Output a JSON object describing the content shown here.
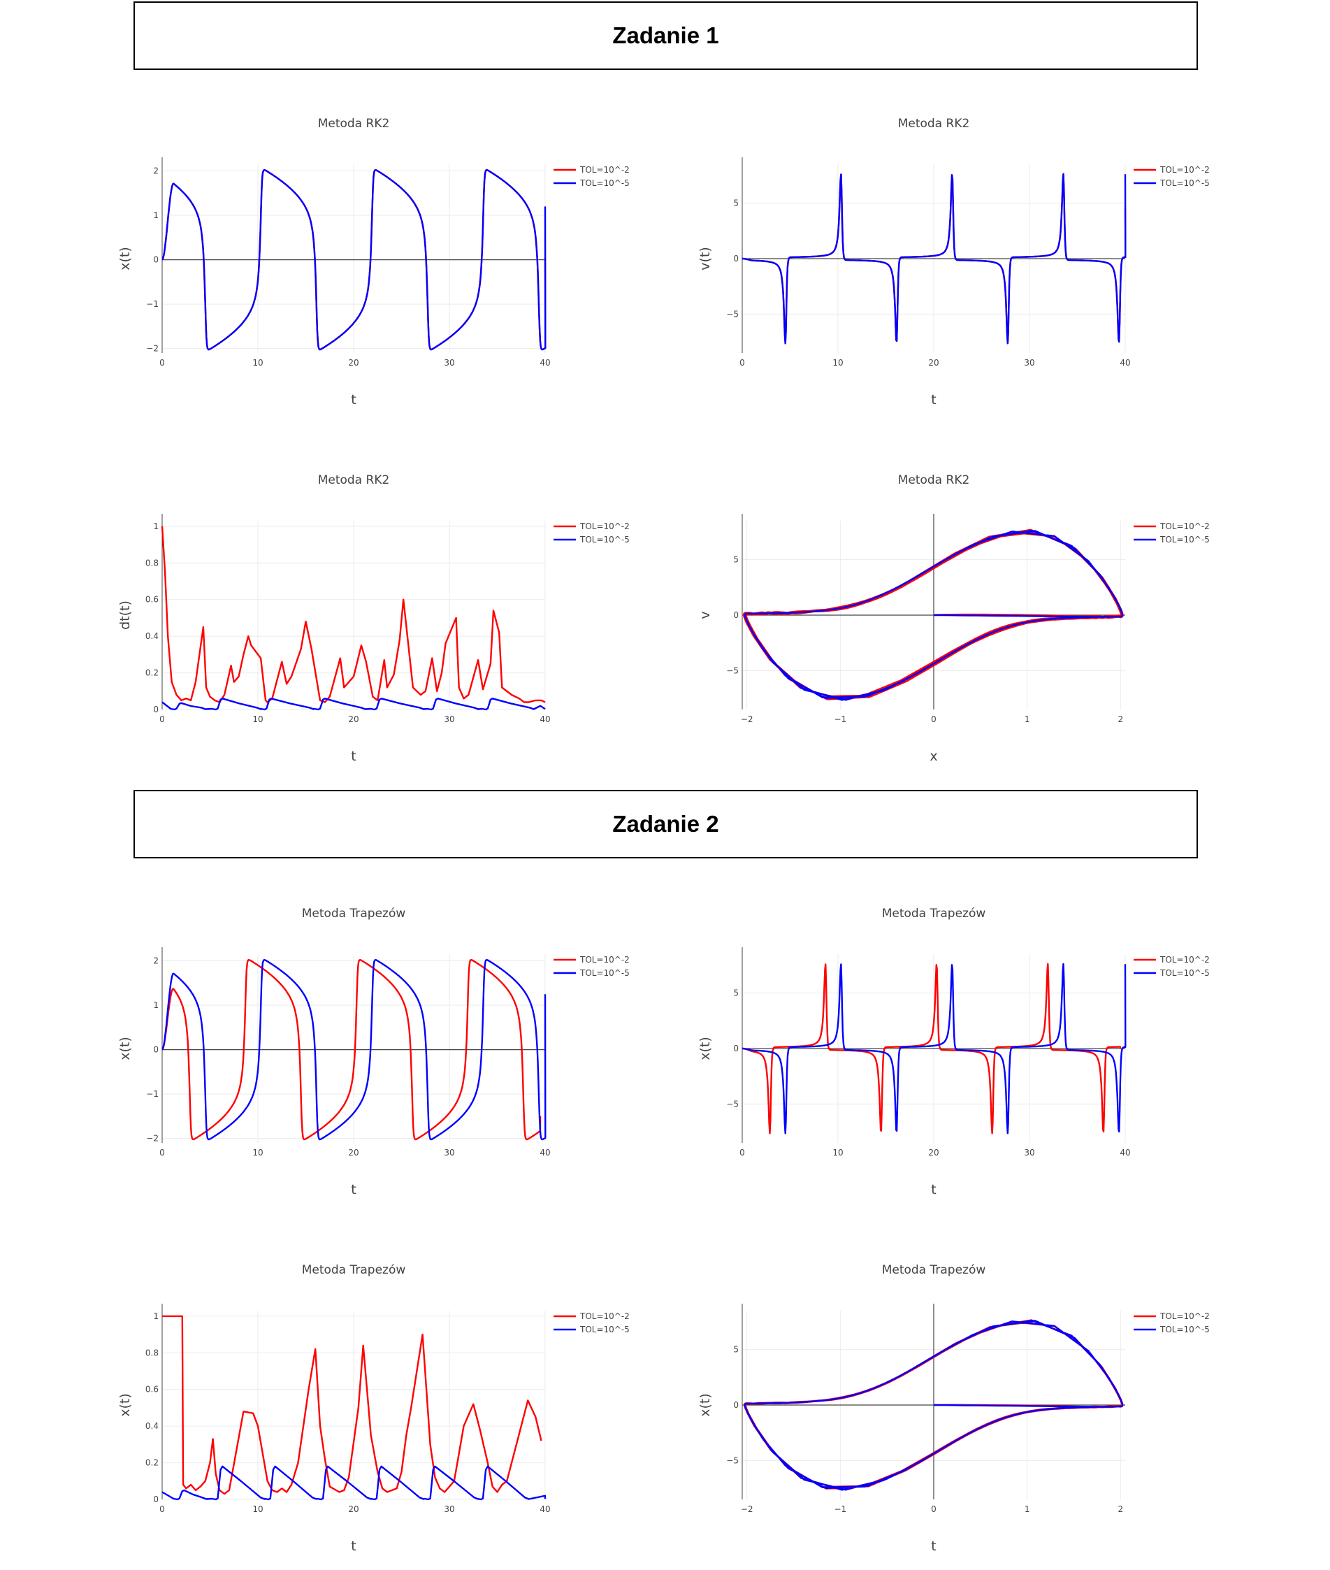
{
  "sections": [
    {
      "title": "Zadanie 1"
    },
    {
      "title": "Zadanie 2"
    }
  ],
  "colors": {
    "series_a": "#ff0000",
    "series_b": "#0000ff",
    "grid": "#ebebeb",
    "zero": "#444444"
  },
  "chart_data": [
    {
      "type": "line",
      "title": "Metoda RK2",
      "xlabel": "t",
      "ylabel": "x(t)",
      "xlim": [
        0,
        40
      ],
      "ylim": [
        -2.1,
        2.15
      ],
      "xticks": [
        0,
        10,
        20,
        30,
        40
      ],
      "yticks": [
        -2,
        -1,
        0,
        1,
        2
      ],
      "grid": true,
      "legend": "top-right",
      "series": [
        {
          "name": "TOL=10^-2",
          "color": "#ff0000",
          "kind": "vdp_x",
          "t0": 0,
          "t1": 40,
          "start": 0.75,
          "end_val": 0.05,
          "dt": 0.06
        },
        {
          "name": "TOL=10^-5",
          "color": "#0000ff",
          "kind": "vdp_x",
          "t0": 0,
          "t1": 40,
          "start": 0.75,
          "end_val": 1.2,
          "dt": 0.06
        }
      ]
    },
    {
      "type": "line",
      "title": "Metoda RK2",
      "xlabel": "t",
      "ylabel": "v(t)",
      "xlim": [
        0,
        40
      ],
      "ylim": [
        -8.5,
        8.5
      ],
      "xticks": [
        0,
        10,
        20,
        30,
        40
      ],
      "yticks": [
        -5,
        0,
        5
      ],
      "grid": true,
      "legend": "top-right",
      "series": [
        {
          "name": "TOL=10^-2",
          "color": "#ff0000",
          "kind": "vdp_v",
          "t0": 0,
          "t1": 40,
          "start": 0.75,
          "end_val": 4.5,
          "dt": 0.06
        },
        {
          "name": "TOL=10^-5",
          "color": "#0000ff",
          "kind": "vdp_v",
          "t0": 0,
          "t1": 40,
          "start": 0.75,
          "end_val": 7.6,
          "dt": 0.06
        }
      ]
    },
    {
      "type": "line",
      "title": "Metoda RK2",
      "xlabel": "t",
      "ylabel": "dt(t)",
      "xlim": [
        0,
        40
      ],
      "ylim": [
        0,
        1.03
      ],
      "xticks": [
        0,
        10,
        20,
        30,
        40
      ],
      "yticks": [
        0,
        0.2,
        0.4,
        0.6,
        0.8,
        1
      ],
      "grid": true,
      "legend": "top-right",
      "series": [
        {
          "name": "TOL=10^-2",
          "color": "#ff0000",
          "kind": "points",
          "x": [
            0,
            0.3,
            0.6,
            1,
            1.5,
            2,
            2.5,
            3,
            3.5,
            4.3,
            4.6,
            5,
            5.5,
            6,
            6.5,
            7.2,
            7.5,
            8,
            8.5,
            9,
            9.3,
            10.3,
            10.8,
            11,
            11.5,
            12.5,
            13,
            13.5,
            14.5,
            15,
            15.6,
            16.5,
            17,
            17.5,
            18.6,
            19,
            20,
            20.8,
            21.3,
            22,
            22.5,
            23.2,
            23.5,
            24.2,
            24.8,
            25.2,
            26.2,
            27,
            27.5,
            28.2,
            28.7,
            29.2,
            29.6,
            30.7,
            31,
            31.5,
            32,
            33,
            33.5,
            34.3,
            34.6,
            35.2,
            35.5,
            36.5,
            37.3,
            37.8,
            38.3,
            39,
            39.6,
            40
          ],
          "y": [
            1,
            0.75,
            0.4,
            0.15,
            0.08,
            0.05,
            0.06,
            0.05,
            0.15,
            0.45,
            0.12,
            0.07,
            0.05,
            0.04,
            0.08,
            0.24,
            0.15,
            0.18,
            0.3,
            0.4,
            0.35,
            0.28,
            0.05,
            0.04,
            0.06,
            0.26,
            0.14,
            0.18,
            0.33,
            0.48,
            0.33,
            0.05,
            0.04,
            0.07,
            0.28,
            0.12,
            0.18,
            0.35,
            0.26,
            0.07,
            0.05,
            0.27,
            0.12,
            0.19,
            0.38,
            0.6,
            0.12,
            0.08,
            0.1,
            0.28,
            0.1,
            0.2,
            0.36,
            0.5,
            0.12,
            0.06,
            0.08,
            0.27,
            0.11,
            0.25,
            0.54,
            0.42,
            0.12,
            0.08,
            0.06,
            0.04,
            0.04,
            0.05,
            0.05,
            0.04
          ]
        },
        {
          "name": "TOL=10^-5",
          "color": "#0000ff",
          "kind": "dtb",
          "cycles": [
            [
              1.5,
              4.5
            ],
            [
              5.8,
              10.3
            ],
            [
              10.9,
              15.8
            ],
            [
              16.5,
              21.2
            ],
            [
              22.4,
              27.3
            ],
            [
              28.3,
              33.0
            ],
            [
              34.0,
              38.8
            ]
          ],
          "peaks": [
            0.035,
            0.06,
            0.06,
            0.06,
            0.06,
            0.06,
            0.06
          ]
        }
      ]
    },
    {
      "type": "line",
      "title": "Metoda RK2",
      "xlabel": "x",
      "ylabel": "v",
      "xlim": [
        -2.05,
        2.05
      ],
      "ylim": [
        -8.5,
        8.5
      ],
      "xticks": [
        -2,
        -1,
        0,
        1,
        2
      ],
      "yticks": [
        -5,
        0,
        5
      ],
      "grid": true,
      "legend": "top-right",
      "series": [
        {
          "name": "TOL=10^-2",
          "color": "#ff0000",
          "kind": "vdp_phase",
          "t0": 0,
          "t1": 40,
          "start": 0.75,
          "dt": 0.06,
          "dev": 0.35
        },
        {
          "name": "TOL=10^-5",
          "color": "#0000ff",
          "kind": "vdp_phase",
          "t0": 0,
          "t1": 40,
          "start": 0.75,
          "dt": 0.06,
          "dev": 0
        }
      ]
    },
    {
      "type": "line",
      "title": "Metoda Trapezów",
      "xlabel": "t",
      "ylabel": "x(t)",
      "xlim": [
        0,
        40
      ],
      "ylim": [
        -2.1,
        2.15
      ],
      "xticks": [
        0,
        10,
        20,
        30,
        40
      ],
      "yticks": [
        -2,
        -1,
        0,
        1,
        2
      ],
      "grid": true,
      "legend": "top-right",
      "series": [
        {
          "name": "TOL=10^-2",
          "color": "#ff0000",
          "kind": "vdp_x",
          "t0": 0,
          "t1": 39.5,
          "start": 2.4,
          "end_val": -1.5,
          "dt": 0.06
        },
        {
          "name": "TOL=10^-5",
          "color": "#0000ff",
          "kind": "vdp_x",
          "t0": 0,
          "t1": 40,
          "start": 0.75,
          "end_val": 1.25,
          "dt": 0.06
        }
      ]
    },
    {
      "type": "line",
      "title": "Metoda Trapezów",
      "xlabel": "t",
      "ylabel": "x(t)",
      "xlim": [
        0,
        40
      ],
      "ylim": [
        -8.5,
        8.5
      ],
      "xticks": [
        0,
        10,
        20,
        30,
        40
      ],
      "yticks": [
        -5,
        0,
        5
      ],
      "grid": true,
      "legend": "top-right",
      "series": [
        {
          "name": "TOL=10^-2",
          "color": "#ff0000",
          "kind": "vdp_v",
          "t0": 0,
          "t1": 39.5,
          "start": 2.4,
          "end_val": 0,
          "dt": 0.06
        },
        {
          "name": "TOL=10^-5",
          "color": "#0000ff",
          "kind": "vdp_v",
          "t0": 0,
          "t1": 40,
          "start": 0.75,
          "end_val": 7.6,
          "dt": 0.06
        }
      ]
    },
    {
      "type": "line",
      "title": "Metoda Trapezów",
      "xlabel": "t",
      "ylabel": "x(t)",
      "xlim": [
        0,
        40
      ],
      "ylim": [
        0,
        1.03
      ],
      "xticks": [
        0,
        10,
        20,
        30,
        40
      ],
      "yticks": [
        0,
        0.2,
        0.4,
        0.6,
        0.8,
        1
      ],
      "grid": true,
      "legend": "top-right",
      "series": [
        {
          "name": "TOL=10^-2",
          "color": "#ff0000",
          "kind": "points",
          "x": [
            0,
            2.0,
            2.1,
            2.2,
            2.5,
            3,
            3.5,
            4,
            4.5,
            5,
            5.3,
            5.6,
            6,
            6.5,
            7,
            8.5,
            9.5,
            10,
            11,
            11.5,
            12,
            12.5,
            13,
            13.5,
            14.2,
            15.3,
            16,
            16.5,
            17,
            17.5,
            18.5,
            19,
            19.5,
            20.5,
            21,
            21.8,
            22.5,
            23,
            23.5,
            24.5,
            25,
            25.5,
            26,
            27.2,
            28,
            28.5,
            29,
            29.5,
            30.5,
            31,
            31.5,
            32.5,
            33.2,
            34,
            34.5,
            35,
            35.5,
            36,
            37,
            38.2,
            39,
            39.6
          ],
          "y": [
            1,
            1,
            1,
            0.08,
            0.06,
            0.08,
            0.05,
            0.07,
            0.1,
            0.2,
            0.33,
            0.14,
            0.05,
            0.03,
            0.05,
            0.48,
            0.47,
            0.4,
            0.1,
            0.05,
            0.04,
            0.06,
            0.04,
            0.08,
            0.2,
            0.6,
            0.82,
            0.4,
            0.22,
            0.07,
            0.04,
            0.05,
            0.12,
            0.5,
            0.84,
            0.35,
            0.15,
            0.06,
            0.04,
            0.06,
            0.15,
            0.35,
            0.5,
            0.9,
            0.3,
            0.12,
            0.06,
            0.04,
            0.1,
            0.25,
            0.4,
            0.52,
            0.38,
            0.2,
            0.07,
            0.04,
            0.08,
            0.1,
            0.3,
            0.54,
            0.45,
            0.32
          ]
        },
        {
          "name": "TOL=10^-5",
          "color": "#0000ff",
          "kind": "dtb",
          "cycles": [
            [
              1.8,
              4.6
            ],
            [
              5.8,
              10.7
            ],
            [
              11.3,
              16.1
            ],
            [
              16.8,
              21.8
            ],
            [
              22.4,
              27.3
            ],
            [
              28.0,
              33.0
            ],
            [
              33.5,
              38.3
            ]
          ],
          "peaks": [
            0.05,
            0.18,
            0.18,
            0.18,
            0.18,
            0.18,
            0.18
          ],
          "tail": 40
        }
      ]
    },
    {
      "type": "line",
      "title": "Metoda Trapezów",
      "xlabel": "t",
      "ylabel": "x(t)",
      "xlim": [
        -2.05,
        2.05
      ],
      "ylim": [
        -8.5,
        8.5
      ],
      "xticks": [
        -2,
        -1,
        0,
        1,
        2
      ],
      "yticks": [
        -5,
        0,
        5
      ],
      "grid": true,
      "legend": "top-right",
      "series": [
        {
          "name": "TOL=10^-2",
          "color": "#ff0000",
          "kind": "vdp_phase",
          "t0": 0,
          "t1": 40,
          "start": 0.75,
          "dt": 0.06,
          "dev": 0.15
        },
        {
          "name": "TOL=10^-5",
          "color": "#0000ff",
          "kind": "vdp_phase",
          "t0": 0,
          "t1": 40,
          "start": 0.75,
          "dt": 0.06,
          "dev": 0
        }
      ]
    }
  ]
}
